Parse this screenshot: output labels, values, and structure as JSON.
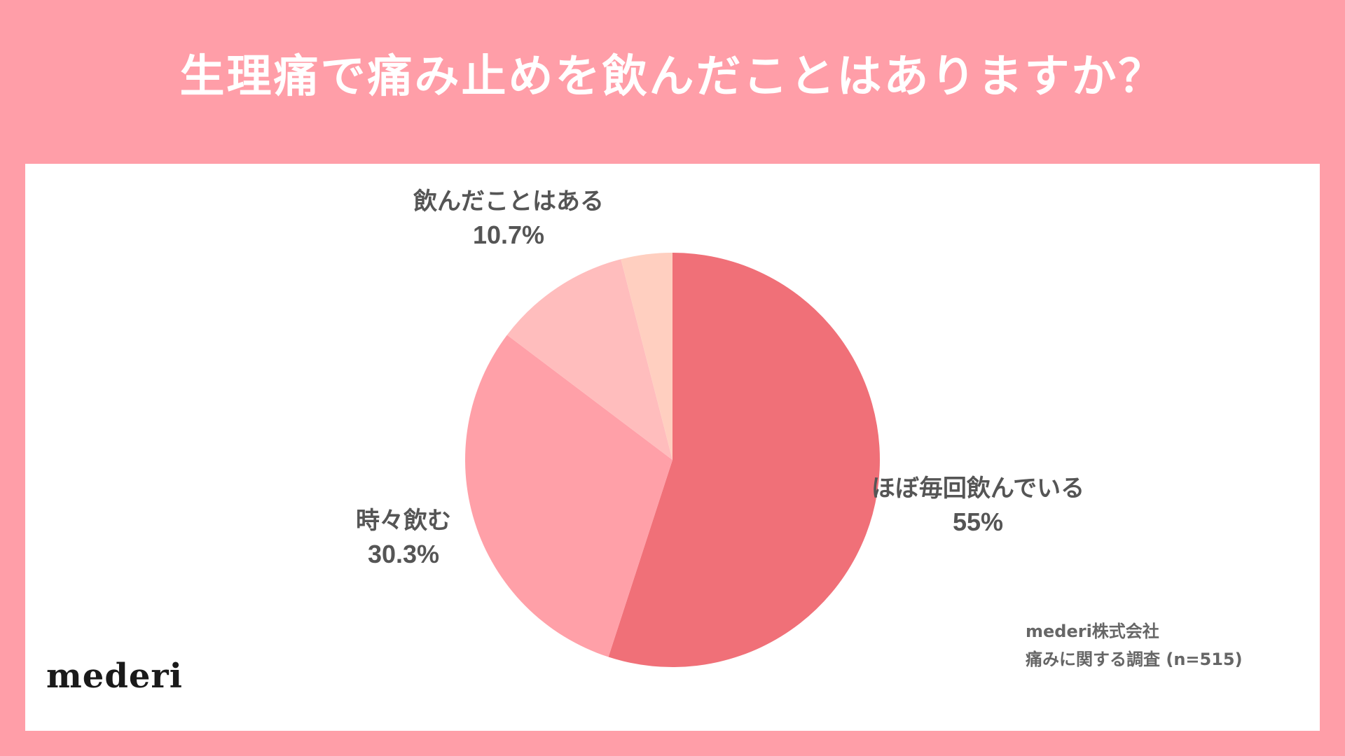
{
  "title": "生理痛で痛み止めを飲んだことはありますか？",
  "colors": {
    "background": "#FF9EA8",
    "panel": "#FFFFFF",
    "title_text": "#FFFFFF",
    "label_text": "#555555"
  },
  "chart_data": {
    "type": "pie",
    "title": "生理痛で痛み止めを飲んだことはありますか？",
    "start": "12 o'clock, clockwise",
    "legend": "none (direct labels)",
    "slices": [
      {
        "label": "ほぼ毎回飲んでいる",
        "value": 55,
        "value_label": "55%",
        "color": "#F07078"
      },
      {
        "label": "時々飲む",
        "value": 30.3,
        "value_label": "30.3%",
        "color": "#FFA0A8"
      },
      {
        "label": "飲んだことはある",
        "value": 10.7,
        "value_label": "10.7%",
        "color": "#FFBDBD"
      },
      {
        "label": "",
        "value": 4.0,
        "value_label": "",
        "color": "#FFCFC0"
      }
    ]
  },
  "logo": "mederi",
  "source": {
    "line1": "mederi株式会社",
    "line2": "痛みに関する調査 (n=515)"
  }
}
